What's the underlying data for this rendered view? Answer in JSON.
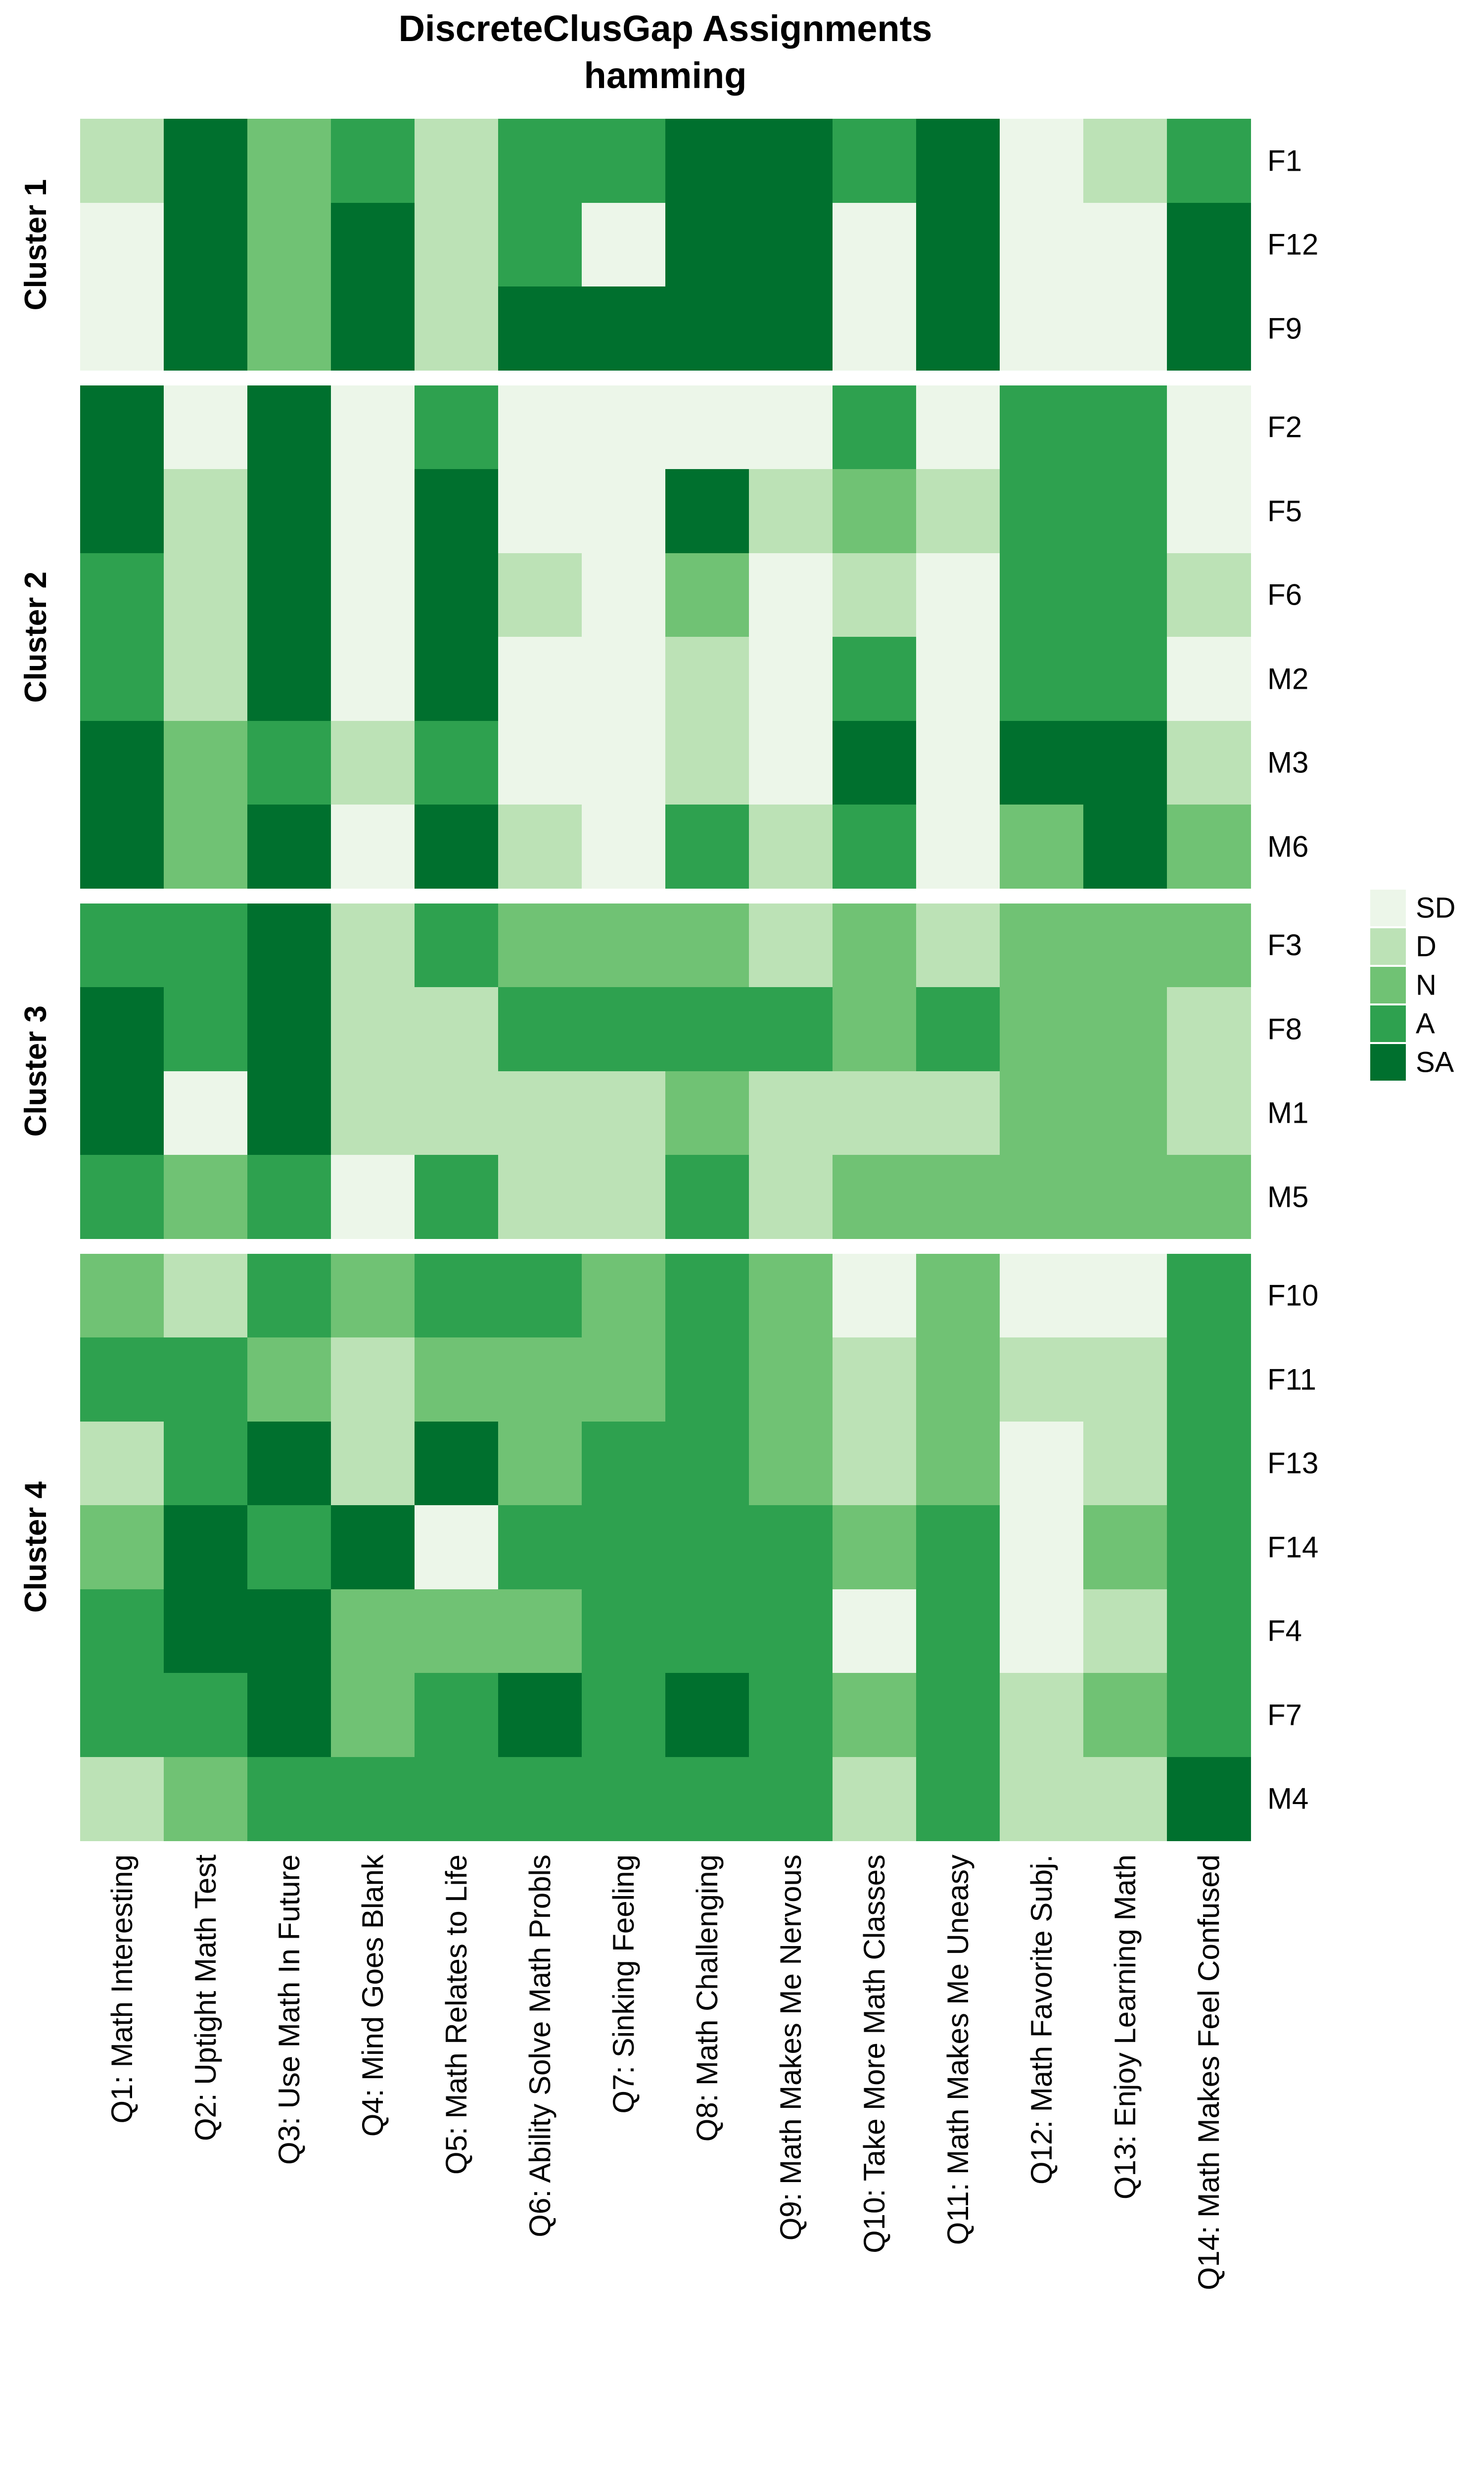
{
  "title": {
    "line1": "DiscreteClusGap Assignments",
    "line2": "hamming"
  },
  "legend": {
    "entries": [
      {
        "label": "SD",
        "color": "#ECF6E9",
        "level": 1
      },
      {
        "label": "D",
        "color": "#BCE2B6",
        "level": 2
      },
      {
        "label": "N",
        "color": "#70C274",
        "level": 3
      },
      {
        "label": "A",
        "color": "#2EA14F",
        "level": 4
      },
      {
        "label": "SA",
        "color": "#00702E",
        "level": 5
      }
    ]
  },
  "chart_data": {
    "type": "heatmap",
    "title": "DiscreteClusGap Assignments",
    "subtitle": "hamming",
    "value_levels": [
      "SD",
      "D",
      "N",
      "A",
      "SA"
    ],
    "level_colors": [
      "#ECF6E9",
      "#BCE2B6",
      "#70C274",
      "#2EA14F",
      "#00702E"
    ],
    "legend_position": "right",
    "columns": [
      "Q1: Math Interesting",
      "Q2: Uptight Math Test",
      "Q3: Use Math In Future",
      "Q4: Mind Goes Blank",
      "Q5: Math Relates to Life",
      "Q6: Ability Solve Math Probls",
      "Q7: Sinking Feeling",
      "Q8: Math Challenging",
      "Q9: Math Makes Me Nervous",
      "Q10: Take More Math Classes",
      "Q11: Math Makes Me Uneasy",
      "Q12: Math Favorite Subj.",
      "Q13: Enjoy Learning Math",
      "Q14: Math Makes Feel Confused"
    ],
    "clusters": [
      {
        "name": "Cluster 1",
        "rows": [
          {
            "label": "F1",
            "values": [
              2,
              5,
              3,
              4,
              2,
              4,
              4,
              5,
              5,
              4,
              5,
              1,
              2,
              4
            ]
          },
          {
            "label": "F12",
            "values": [
              1,
              5,
              3,
              5,
              2,
              4,
              1,
              5,
              5,
              1,
              5,
              1,
              1,
              5
            ]
          },
          {
            "label": "F9",
            "values": [
              1,
              5,
              3,
              5,
              2,
              5,
              5,
              5,
              5,
              1,
              5,
              1,
              1,
              5
            ]
          }
        ]
      },
      {
        "name": "Cluster 2",
        "rows": [
          {
            "label": "F2",
            "values": [
              5,
              1,
              5,
              1,
              4,
              1,
              1,
              1,
              1,
              4,
              1,
              4,
              4,
              1
            ]
          },
          {
            "label": "F5",
            "values": [
              5,
              2,
              5,
              1,
              5,
              1,
              1,
              5,
              2,
              3,
              2,
              4,
              4,
              1
            ]
          },
          {
            "label": "F6",
            "values": [
              4,
              2,
              5,
              1,
              5,
              2,
              1,
              3,
              1,
              2,
              1,
              4,
              4,
              2
            ]
          },
          {
            "label": "M2",
            "values": [
              4,
              2,
              5,
              1,
              5,
              1,
              1,
              2,
              1,
              4,
              1,
              4,
              4,
              1
            ]
          },
          {
            "label": "M3",
            "values": [
              5,
              3,
              4,
              2,
              4,
              1,
              1,
              2,
              1,
              5,
              1,
              5,
              5,
              2
            ]
          },
          {
            "label": "M6",
            "values": [
              5,
              3,
              5,
              1,
              5,
              2,
              1,
              4,
              2,
              4,
              1,
              3,
              5,
              3
            ]
          }
        ]
      },
      {
        "name": "Cluster 3",
        "rows": [
          {
            "label": "F3",
            "values": [
              4,
              4,
              5,
              2,
              4,
              3,
              3,
              3,
              2,
              3,
              2,
              3,
              3,
              3
            ]
          },
          {
            "label": "F8",
            "values": [
              5,
              4,
              5,
              2,
              2,
              4,
              4,
              4,
              4,
              3,
              4,
              3,
              3,
              2
            ]
          },
          {
            "label": "M1",
            "values": [
              5,
              1,
              5,
              2,
              2,
              2,
              2,
              3,
              2,
              2,
              2,
              3,
              3,
              2
            ]
          },
          {
            "label": "M5",
            "values": [
              4,
              3,
              4,
              1,
              4,
              2,
              2,
              4,
              2,
              3,
              3,
              3,
              3,
              3
            ]
          }
        ]
      },
      {
        "name": "Cluster 4",
        "rows": [
          {
            "label": "F10",
            "values": [
              3,
              2,
              4,
              3,
              4,
              4,
              3,
              4,
              3,
              1,
              3,
              1,
              1,
              4
            ]
          },
          {
            "label": "F11",
            "values": [
              4,
              4,
              3,
              2,
              3,
              3,
              3,
              4,
              3,
              2,
              3,
              2,
              2,
              4
            ]
          },
          {
            "label": "F13",
            "values": [
              2,
              4,
              5,
              2,
              5,
              3,
              4,
              4,
              3,
              2,
              3,
              1,
              2,
              4
            ]
          },
          {
            "label": "F14",
            "values": [
              3,
              5,
              4,
              5,
              1,
              4,
              4,
              4,
              4,
              3,
              4,
              1,
              3,
              4
            ]
          },
          {
            "label": "F4",
            "values": [
              4,
              5,
              5,
              3,
              3,
              3,
              4,
              4,
              4,
              1,
              4,
              1,
              2,
              4
            ]
          },
          {
            "label": "F7",
            "values": [
              4,
              4,
              5,
              3,
              4,
              5,
              4,
              5,
              4,
              3,
              4,
              2,
              3,
              4
            ]
          },
          {
            "label": "M4",
            "values": [
              2,
              3,
              4,
              4,
              4,
              4,
              4,
              4,
              4,
              2,
              4,
              2,
              2,
              5
            ]
          }
        ]
      }
    ]
  }
}
